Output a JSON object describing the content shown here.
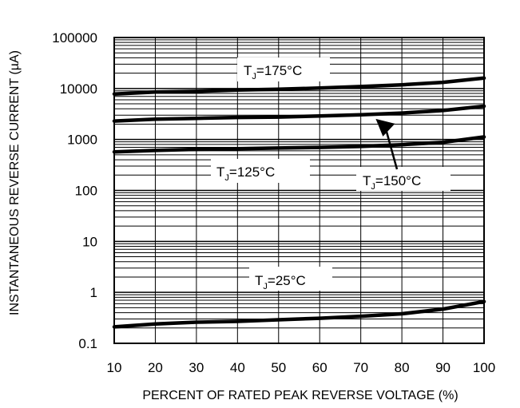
{
  "chart_data": {
    "type": "line",
    "title": "",
    "xlabel": "PERCENT OF RATED PEAK REVERSE VOLTAGE (%)",
    "ylabel": "INSTANTANEOUS REVERSE CURRENT (µA)",
    "xlim": [
      10,
      100
    ],
    "ylim": [
      0.1,
      100000
    ],
    "yscale": "log",
    "grid": true,
    "x_ticks": [
      "10",
      "20",
      "30",
      "40",
      "50",
      "60",
      "70",
      "80",
      "90",
      "100"
    ],
    "y_ticks": [
      "0.1",
      "1",
      "10",
      "100",
      "1000",
      "10000",
      "100000"
    ],
    "series": [
      {
        "name": "TJ=175°C",
        "points": [
          [
            10,
            7800
          ],
          [
            20,
            8500
          ],
          [
            30,
            8800
          ],
          [
            40,
            9300
          ],
          [
            50,
            9700
          ],
          [
            60,
            10200
          ],
          [
            70,
            10900
          ],
          [
            80,
            11800
          ],
          [
            90,
            13200
          ],
          [
            100,
            16000
          ]
        ]
      },
      {
        "name": "TJ=150°C",
        "points": [
          [
            10,
            2300
          ],
          [
            20,
            2500
          ],
          [
            30,
            2600
          ],
          [
            40,
            2700
          ],
          [
            50,
            2750
          ],
          [
            60,
            2900
          ],
          [
            70,
            3050
          ],
          [
            80,
            3300
          ],
          [
            90,
            3700
          ],
          [
            100,
            4500
          ]
        ]
      },
      {
        "name": "TJ=125°C",
        "points": [
          [
            10,
            570
          ],
          [
            20,
            610
          ],
          [
            30,
            640
          ],
          [
            40,
            660
          ],
          [
            50,
            680
          ],
          [
            60,
            700
          ],
          [
            70,
            730
          ],
          [
            80,
            790
          ],
          [
            90,
            880
          ],
          [
            100,
            1120
          ]
        ]
      },
      {
        "name": "TJ=25°C",
        "points": [
          [
            10,
            0.21
          ],
          [
            20,
            0.24
          ],
          [
            30,
            0.26
          ],
          [
            40,
            0.27
          ],
          [
            50,
            0.29
          ],
          [
            60,
            0.31
          ],
          [
            70,
            0.34
          ],
          [
            80,
            0.38
          ],
          [
            90,
            0.47
          ],
          [
            100,
            0.66
          ]
        ]
      }
    ],
    "annotations": [
      {
        "main": "T",
        "sub": "J",
        "rest": "=175°C"
      },
      {
        "main": "T",
        "sub": "J",
        "rest": "=125°C"
      },
      {
        "main": "T",
        "sub": "J",
        "rest": "=150°C"
      },
      {
        "main": "T",
        "sub": "J",
        "rest": "=25°C"
      }
    ]
  }
}
